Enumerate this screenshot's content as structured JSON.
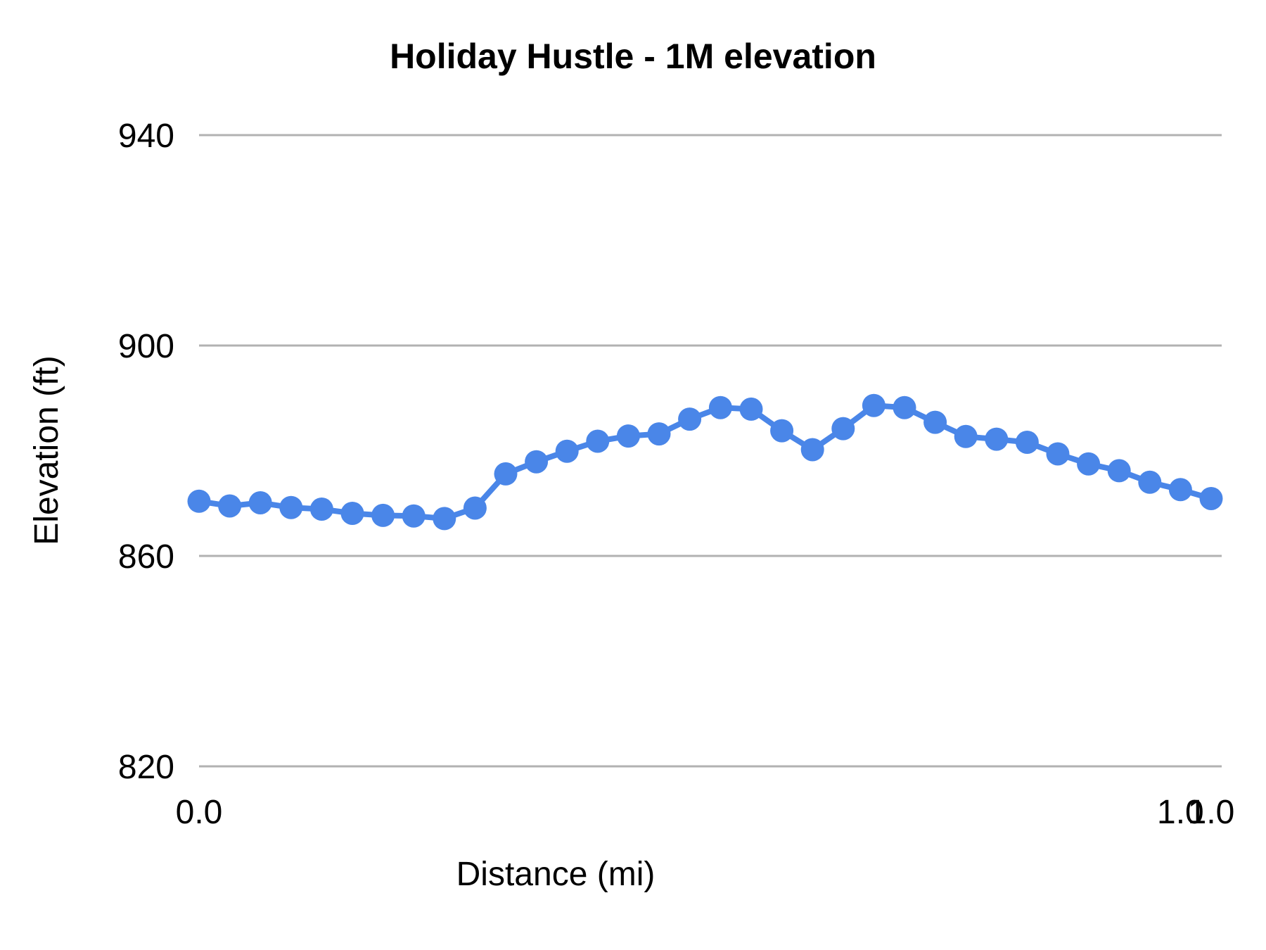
{
  "chart_data": {
    "type": "line",
    "title": "Holiday Hustle - 1M elevation",
    "xlabel": "Distance (mi)",
    "ylabel": "Elevation (ft)",
    "x": [
      0,
      0.0303,
      0.0606,
      0.0909,
      0.1212,
      0.1515,
      0.1818,
      0.2121,
      0.2424,
      0.2727,
      0.303,
      0.3333,
      0.3636,
      0.3939,
      0.4242,
      0.4545,
      0.4848,
      0.5152,
      0.5455,
      0.5758,
      0.6061,
      0.6364,
      0.6667,
      0.697,
      0.7273,
      0.7576,
      0.7879,
      0.8182,
      0.8485,
      0.8788,
      0.9091,
      0.9394,
      0.9697,
      1.0
    ],
    "series": [
      {
        "name": "Elevation",
        "values": [
          870.4,
          869.5,
          870.1,
          869.2,
          868.9,
          868.1,
          867.7,
          867.6,
          867.1,
          869.1,
          875.6,
          877.9,
          879.9,
          881.8,
          882.8,
          883.2,
          886.0,
          888.2,
          887.9,
          883.8,
          880.2,
          884.2,
          888.6,
          888.2,
          885.4,
          882.7,
          882.2,
          881.6,
          879.4,
          877.5,
          876.2,
          874.0,
          872.6,
          870.9
        ]
      }
    ],
    "ylim": [
      820,
      940
    ],
    "xlim": [
      0,
      1
    ],
    "yticks": [
      940,
      900,
      860,
      820
    ],
    "ytick_labels": [
      "940",
      "900",
      "860",
      "820"
    ],
    "x_tick_labels": [
      {
        "index": 0,
        "label": "0.0"
      },
      {
        "index": 32,
        "label": "1.0"
      },
      {
        "index": 33,
        "label": "1.0"
      }
    ],
    "grid": "horizontal",
    "legend": "none",
    "marker": "circle",
    "colors": {
      "series": "#4a86e8",
      "grid": "#b2b2b2",
      "text": "#000000",
      "background": "#ffffff"
    }
  }
}
